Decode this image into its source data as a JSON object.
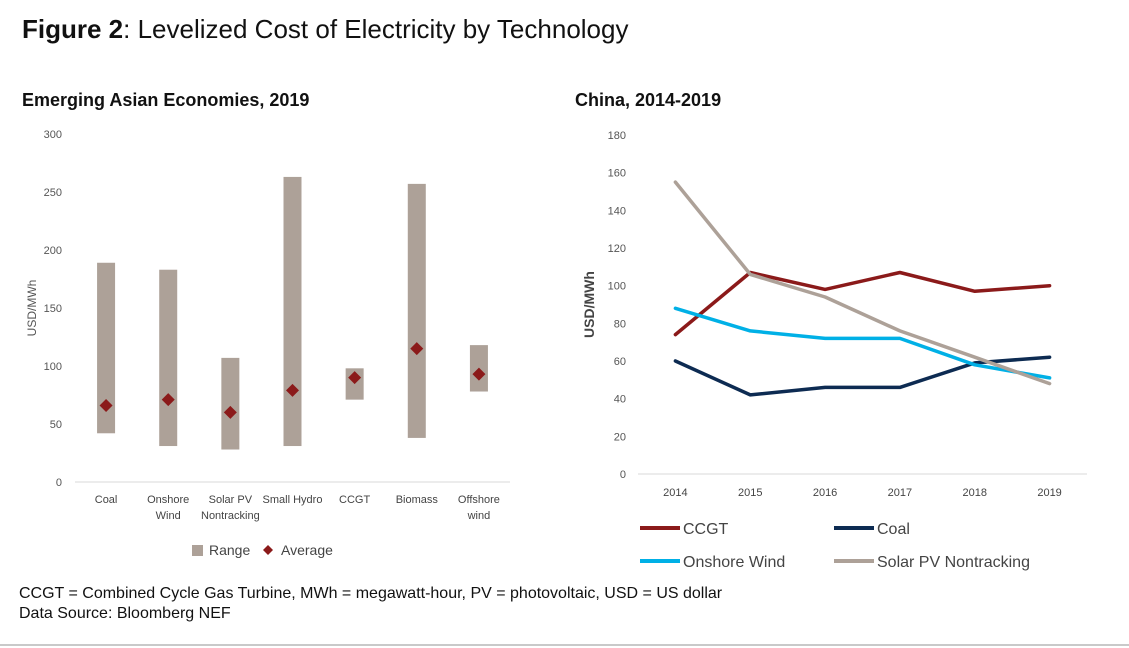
{
  "figure": {
    "label": "Figure 2",
    "separator": ": ",
    "title": "Levelized Cost of Electricity by Technology"
  },
  "chart_data": [
    {
      "type": "bar",
      "variant": "range-with-average",
      "title": "Emerging Asian Economies, 2019",
      "ylabel": "USD/MWh",
      "ylim": [
        0,
        300
      ],
      "yticks": [
        "0",
        "50",
        "100",
        "150",
        "200",
        "250",
        "300"
      ],
      "categories": [
        [
          "Coal"
        ],
        [
          "Onshore",
          "Wind"
        ],
        [
          "Solar PV",
          "Nontracking"
        ],
        [
          "Small Hydro"
        ],
        [
          "CCGT"
        ],
        [
          "Biomass"
        ],
        [
          "Offshore",
          "wind"
        ]
      ],
      "range_low": [
        42,
        31,
        28,
        31,
        71,
        38,
        78
      ],
      "range_high": [
        189,
        183,
        107,
        263,
        98,
        257,
        118
      ],
      "average": [
        66,
        71,
        60,
        79,
        90,
        115,
        93
      ],
      "legend": [
        "Range",
        "Average"
      ],
      "legend_position": "bottom",
      "colors": {
        "range": "#ada198",
        "average": "#8b1a1a"
      },
      "grid": false
    },
    {
      "type": "line",
      "title": "China, 2014-2019",
      "ylabel": "USD/MWh",
      "ylim": [
        0,
        180
      ],
      "yticks": [
        "0",
        "20",
        "40",
        "60",
        "80",
        "100",
        "120",
        "140",
        "160",
        "180"
      ],
      "x": [
        "2014",
        "2015",
        "2016",
        "2017",
        "2018",
        "2019"
      ],
      "series": [
        {
          "name": "CCGT",
          "color": "#8b1a1a",
          "values": [
            74,
            107,
            98,
            107,
            97,
            100
          ]
        },
        {
          "name": "Coal",
          "color": "#0d2b52",
          "values": [
            60,
            42,
            46,
            46,
            59,
            62
          ]
        },
        {
          "name": "Onshore Wind",
          "color": "#00b0e6",
          "values": [
            88,
            76,
            72,
            72,
            58,
            51
          ]
        },
        {
          "name": "Solar PV Nontracking",
          "color": "#ada198",
          "values": [
            155,
            106,
            94,
            76,
            62,
            48
          ]
        }
      ],
      "legend_position": "bottom",
      "grid": false
    }
  ],
  "notes": [
    "CCGT = Combined Cycle Gas Turbine, MWh = megawatt-hour, PV = photovoltaic, USD = US dollar",
    "Data Source: Bloomberg NEF"
  ]
}
